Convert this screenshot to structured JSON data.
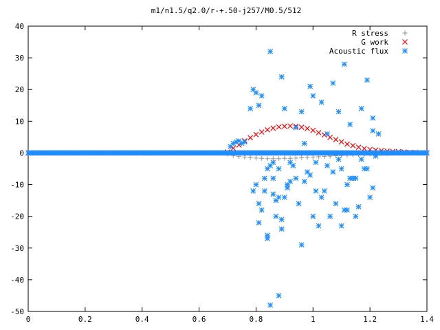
{
  "chart_data": {
    "type": "scatter",
    "title": "m1/n1.5/q2.0/r-+.50-j257/M0.5/512",
    "xlabel": "",
    "ylabel": "",
    "xlim": [
      0,
      1.4
    ],
    "ylim": [
      -50,
      40
    ],
    "x_ticks": [
      "0",
      "0.2",
      "0.4",
      "0.6",
      "0.8",
      "1",
      "1.2",
      "1.4"
    ],
    "y_ticks": [
      "40",
      "30",
      "20",
      "10",
      "0",
      "-10",
      "-20",
      "-30",
      "-40",
      "-50"
    ],
    "grid": false,
    "legend_position": "top-right",
    "series": [
      {
        "name": "R stress",
        "marker": "plus",
        "color": "#a0a0a0",
        "x": [
          0.7,
          0.72,
          0.74,
          0.76,
          0.78,
          0.8,
          0.82,
          0.84,
          0.86,
          0.88,
          0.9,
          0.92,
          0.94,
          0.96,
          0.98,
          1.0,
          1.02,
          1.04,
          1.06,
          1.08,
          1.1,
          1.12,
          1.14,
          1.16,
          1.18,
          1.2,
          1.22,
          1.24,
          1.26,
          1.28,
          1.3,
          1.32,
          1.34,
          1.36
        ],
        "y": [
          -0.3,
          -0.8,
          -1.1,
          -1.3,
          -1.5,
          -1.6,
          -1.7,
          -1.8,
          -1.8,
          -1.8,
          -1.7,
          -1.7,
          -1.6,
          -1.5,
          -1.4,
          -1.3,
          -1.2,
          -1.1,
          -1.0,
          -0.9,
          -0.8,
          -0.7,
          -0.6,
          -0.5,
          -0.4,
          -0.3,
          -0.3,
          -0.2,
          -0.2,
          -0.1,
          -0.1,
          -0.1,
          0.0,
          0.0
        ]
      },
      {
        "name": "G work",
        "marker": "cross",
        "color": "#ff0000",
        "x": [
          0.7,
          0.72,
          0.74,
          0.76,
          0.78,
          0.8,
          0.82,
          0.84,
          0.86,
          0.88,
          0.9,
          0.92,
          0.94,
          0.96,
          0.98,
          1.0,
          1.02,
          1.04,
          1.06,
          1.08,
          1.1,
          1.12,
          1.14,
          1.16,
          1.18,
          1.2,
          1.22,
          1.24,
          1.26,
          1.28,
          1.3,
          1.32,
          1.34,
          1.36
        ],
        "y": [
          0.3,
          1.5,
          2.5,
          3.8,
          4.8,
          5.8,
          6.6,
          7.3,
          7.8,
          8.2,
          8.4,
          8.5,
          8.4,
          8.1,
          7.7,
          7.1,
          6.4,
          5.7,
          4.9,
          4.2,
          3.5,
          2.8,
          2.3,
          1.8,
          1.4,
          1.1,
          0.9,
          0.7,
          0.6,
          0.5,
          0.4,
          0.3,
          0.2,
          0.1
        ]
      },
      {
        "name": "Acoustic flux",
        "marker": "star",
        "color": "#1f8fff",
        "x": [
          0.71,
          0.72,
          0.73,
          0.74,
          0.75,
          0.76,
          0.78,
          0.79,
          0.8,
          0.81,
          0.81,
          0.82,
          0.83,
          0.84,
          0.85,
          0.86,
          0.87,
          0.88,
          0.89,
          0.9,
          0.91,
          0.92,
          0.94,
          0.96,
          0.97,
          0.99,
          1.0,
          1.01,
          1.03,
          1.05,
          1.07,
          1.09,
          1.11,
          1.12,
          1.13,
          1.15,
          1.17,
          1.19,
          1.21,
          1.23,
          0.8,
          0.82,
          0.84,
          0.86,
          0.88,
          0.9,
          0.92,
          0.94,
          0.96,
          0.98,
          1.0,
          1.02,
          1.04,
          1.06,
          1.08,
          1.1,
          1.12,
          1.14,
          1.16,
          1.18,
          1.2,
          1.22,
          0.79,
          0.83,
          0.87,
          0.91,
          0.95,
          0.99,
          1.03,
          1.07,
          1.11,
          1.15,
          1.19,
          0.81,
          0.85,
          0.89,
          0.93,
          0.97,
          1.01,
          1.05,
          1.09,
          1.13,
          1.17,
          1.21,
          0.85,
          0.88,
          0.89,
          1.1,
          1.21,
          0.84,
          0.86
        ],
        "y": [
          2,
          3,
          3.5,
          3.8,
          3,
          3.5,
          14,
          20,
          19,
          15,
          -22,
          18,
          -12,
          -27,
          32,
          -8,
          -15,
          -5,
          24,
          14,
          -11,
          -3,
          8,
          13,
          -9,
          21,
          18,
          -12,
          16,
          -4,
          22,
          13,
          28,
          -10,
          9,
          -20,
          14,
          23,
          11,
          6,
          -10,
          -18,
          -26,
          -3,
          -45,
          -14,
          -9,
          -8,
          -29,
          -6,
          -20,
          -23,
          -12,
          -20,
          -16,
          -5,
          -18,
          -8,
          -17,
          -5,
          -14,
          -1,
          -12,
          -8,
          -20,
          -10,
          -16,
          -7,
          -14,
          -6,
          -18,
          -8,
          -5,
          -16,
          -4,
          -21,
          -4,
          3,
          -3,
          6,
          -2,
          -8,
          -2,
          7,
          -48,
          -14,
          -24,
          -23,
          -11,
          -5,
          -13
        ]
      }
    ]
  }
}
